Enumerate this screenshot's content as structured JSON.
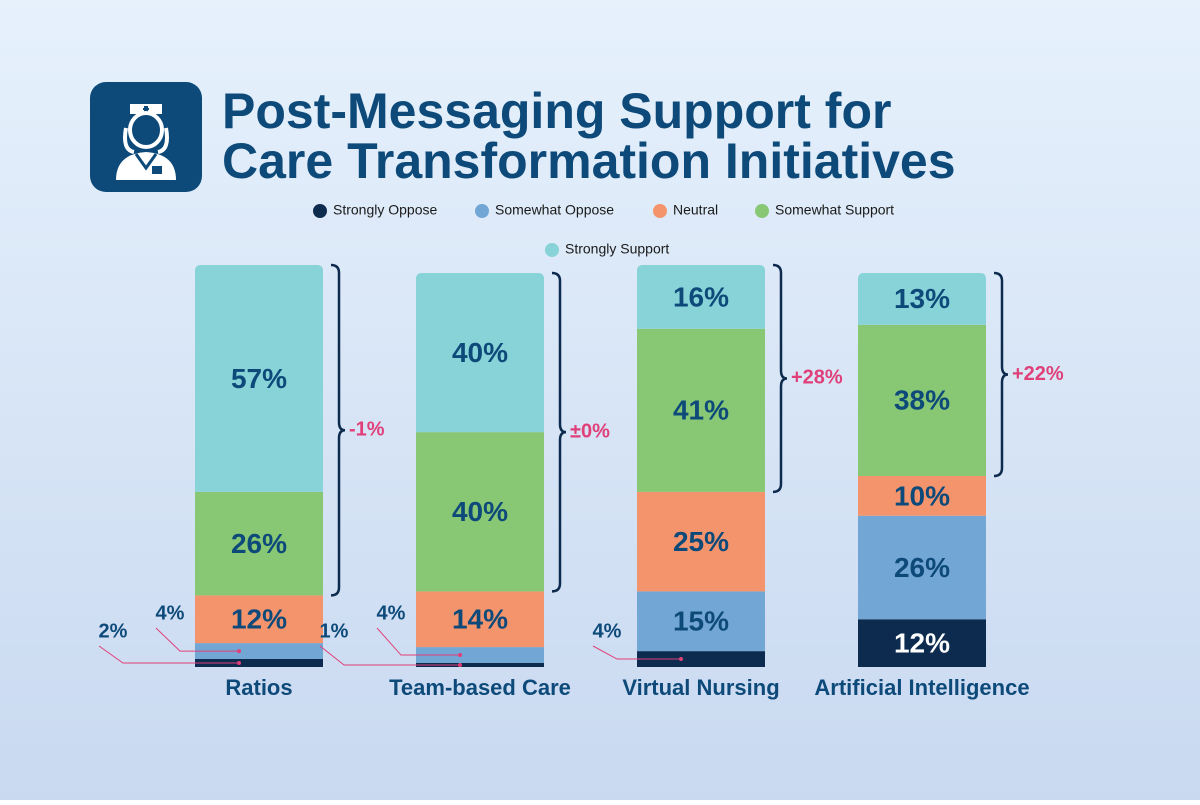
{
  "chart_data": {
    "type": "stacked-bar",
    "title": [
      "Post-Messaging Support for",
      "Care Transformation Initiatives"
    ],
    "categories": [
      "Ratios",
      "Team-based Care",
      "Virtual Nursing",
      "Artificial Intelligence"
    ],
    "series": [
      {
        "name": "Strongly Oppose",
        "color": "#0d2b4e",
        "values": [
          2,
          1,
          4,
          12
        ],
        "value_labels": [
          "2%",
          "1%",
          "4%",
          "12%"
        ]
      },
      {
        "name": "Somewhat Oppose",
        "color": "#72a6d4",
        "values": [
          4,
          4,
          15,
          26
        ],
        "value_labels": [
          "4%",
          "4%",
          "15%",
          "26%"
        ]
      },
      {
        "name": "Neutral",
        "color": "#f4946c",
        "values": [
          12,
          14,
          25,
          10
        ],
        "value_labels": [
          "12%",
          "14%",
          "25%",
          "10%"
        ]
      },
      {
        "name": "Somewhat Support",
        "color": "#88c774",
        "values": [
          26,
          40,
          41,
          38
        ],
        "value_labels": [
          "26%",
          "40%",
          "41%",
          "38%"
        ]
      },
      {
        "name": "Strongly Support",
        "color": "#88d3d8",
        "values": [
          57,
          40,
          16,
          13
        ],
        "value_labels": [
          "57%",
          "40%",
          "16%",
          "13%"
        ]
      }
    ],
    "annotations": [
      "-1%",
      "±0%",
      "+28%",
      "+22%"
    ]
  }
}
